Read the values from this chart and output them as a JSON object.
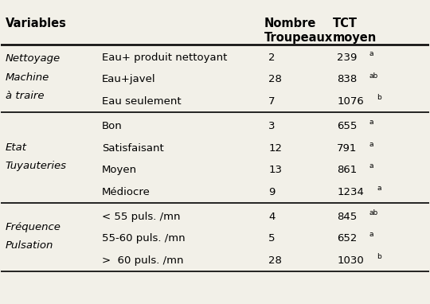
{
  "header_col1": "Variables",
  "header_col2": "Nombre\nTroupeaux",
  "header_col3": "TCT\nmoyen",
  "sections": [
    {
      "group_label": "Nettoyage\nMachine\nà traire",
      "rows": [
        {
          "sub": "Eau+ produit nettoyant",
          "n": "2",
          "tct": "239",
          "sup": "a"
        },
        {
          "sub": "Eau+javel",
          "n": "28",
          "tct": "838",
          "sup": "ab"
        },
        {
          "sub": "Eau seulement",
          "n": "7",
          "tct": "1076",
          "sup": "b"
        }
      ]
    },
    {
      "group_label": "Etat\nTuyauteries",
      "rows": [
        {
          "sub": "Bon",
          "n": "3",
          "tct": "655",
          "sup": "a"
        },
        {
          "sub": "Satisfaisant",
          "n": "12",
          "tct": "791",
          "sup": "a"
        },
        {
          "sub": "Moyen",
          "n": "13",
          "tct": "861",
          "sup": "a"
        },
        {
          "sub": "Médiocre",
          "n": "9",
          "tct": "1234",
          "sup": "a"
        }
      ]
    },
    {
      "group_label": "Fréquence\nPulsation",
      "rows": [
        {
          "sub": "< 55 puls. /mn",
          "n": "4",
          "tct": "845",
          "sup": "ab"
        },
        {
          "sub": "55-60 puls. /mn",
          "n": "5",
          "tct": "652",
          "sup": "a"
        },
        {
          "sub": ">  60 puls. /mn",
          "n": "28",
          "tct": "1030",
          "sup": "b"
        }
      ]
    }
  ],
  "bg_color": "#f2f0e8",
  "text_color": "#000000",
  "line_color": "#000000",
  "header_fontsize": 10.5,
  "body_fontsize": 9.5,
  "group_fontsize": 9.5,
  "sup_fontsize": 6.5
}
